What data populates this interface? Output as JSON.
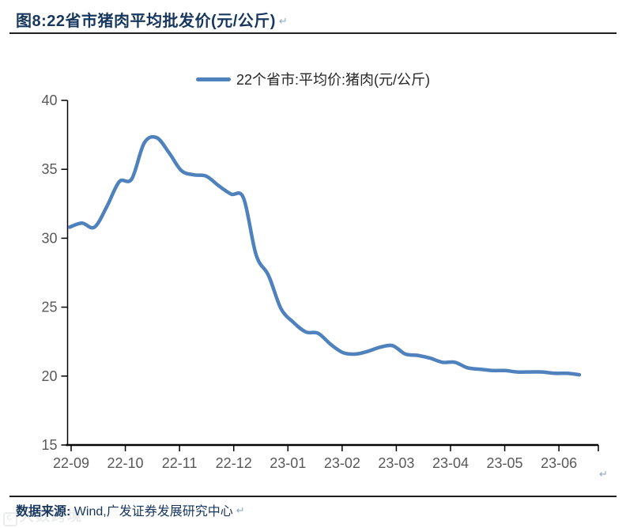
{
  "figure": {
    "title": "图8:22省市猪肉平均批发价(元/公斤)",
    "title_paragraph_mark": "↵",
    "chart_paragraph_mark": "↵",
    "watermark_text": "大数跨境",
    "watermark_badge": "C"
  },
  "legend": {
    "label": "22个省市:平均价:猪肉(元/公斤)"
  },
  "footer": {
    "source_label": "数据来源:",
    "source_value": "Wind,广发证券发展研究中心",
    "paragraph_mark": "↵"
  },
  "colors": {
    "line": "#4F81BD",
    "title_text": "#17375E",
    "axis_label": "#595959",
    "axis_line": "#000000",
    "rule": "#1f1f1f"
  },
  "chart_data": {
    "type": "line",
    "title": "图8:22省市猪肉平均批发价(元/公斤)",
    "xlabel": "",
    "ylabel": "",
    "ylim": [
      15,
      40
    ],
    "y_ticks": [
      40,
      35,
      30,
      25,
      20,
      15
    ],
    "x_tick_labels": [
      "22-09",
      "22-10",
      "22-11",
      "22-12",
      "23-01",
      "23-02",
      "23-03",
      "23-04",
      "23-05",
      "23-06"
    ],
    "x_sampling": "weekly, 2022-09 through 2023-06",
    "gridlines": false,
    "legend_position": "top-center",
    "series": [
      {
        "name": "22个省市:平均价:猪肉(元/公斤)",
        "color": "#4F81BD",
        "values": [
          30.8,
          31.1,
          30.8,
          32.3,
          34.1,
          34.3,
          36.9,
          37.3,
          36.2,
          34.9,
          34.6,
          34.5,
          33.8,
          33.2,
          32.9,
          28.8,
          27.3,
          24.9,
          23.9,
          23.2,
          23.1,
          22.3,
          21.7,
          21.6,
          21.8,
          22.1,
          22.2,
          21.6,
          21.5,
          21.3,
          21.0,
          21.0,
          20.6,
          20.5,
          20.4,
          20.4,
          20.3,
          20.3,
          20.3,
          20.2,
          20.2,
          20.1
        ]
      }
    ]
  }
}
